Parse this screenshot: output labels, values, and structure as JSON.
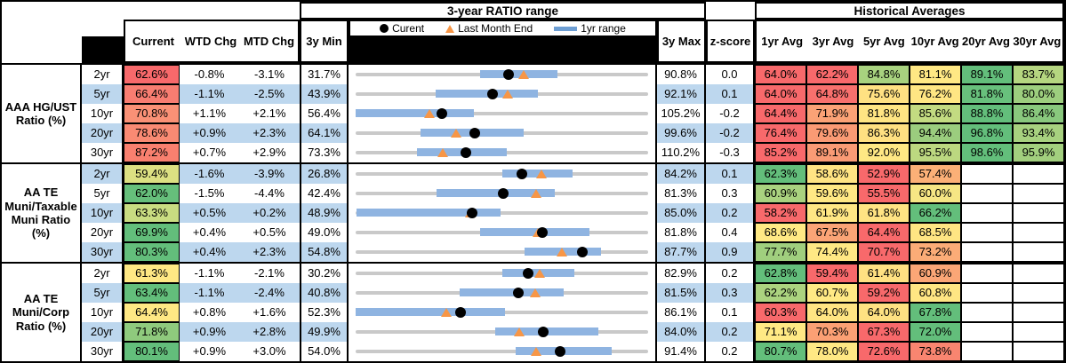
{
  "header": {
    "range_title": "3-year RATIO range",
    "hist_title": "Historical Averages",
    "cols": {
      "current": "Current",
      "wtd": "WTD Chg",
      "mtd": "MTD Chg",
      "min": "3y Min",
      "max": "3y Max",
      "z": "z-score"
    },
    "avg_cols": [
      "1yr Avg",
      "3yr Avg",
      "5yr Avg",
      "10yr Avg",
      "20yr Avg",
      "30yr Avg"
    ]
  },
  "legend": {
    "current": "Curent",
    "lme": "Last Month End",
    "range": "1yr range"
  },
  "theme": {
    "stripe": "#BDD7EE",
    "bar_blue": "#8FB4E1",
    "legend_bar_blue": "#6D9ED3",
    "marker_orange": "#F79646",
    "marker_black": "#000000",
    "line_gray": "#C9C9C9"
  },
  "chart_data": {
    "type": "table",
    "note_units": "percent",
    "groups": [
      {
        "label": "AAA HG/UST Ratio (%)",
        "rows": [
          {
            "tenor": "2yr",
            "current": {
              "v": "62.6%",
              "c": "#F8696B"
            },
            "wtd": "-0.8%",
            "mtd": "-3.1%",
            "min": "31.7%",
            "max": "90.8%",
            "z": "0.0",
            "bar": [
              56.8,
              72.5
            ],
            "avgs": [
              {
                "v": "64.0%",
                "c": "#F8696B"
              },
              {
                "v": "62.2%",
                "c": "#F8696B"
              },
              {
                "v": "84.8%",
                "c": "#A8D27F"
              },
              {
                "v": "81.1%",
                "c": "#FFE884"
              },
              {
                "v": "89.1%",
                "c": "#63BE7B"
              },
              {
                "v": "83.7%",
                "c": "#B5D680"
              }
            ]
          },
          {
            "tenor": "5yr",
            "current": {
              "v": "66.4%",
              "c": "#F87D71"
            },
            "wtd": "-1.1%",
            "mtd": "-2.5%",
            "min": "43.9%",
            "max": "92.1%",
            "z": "0.1",
            "bar": [
              57.1,
              73.9
            ],
            "avgs": [
              {
                "v": "64.0%",
                "c": "#F8696B"
              },
              {
                "v": "64.8%",
                "c": "#F8706D"
              },
              {
                "v": "75.6%",
                "c": "#FFE182"
              },
              {
                "v": "76.2%",
                "c": "#FFE683"
              },
              {
                "v": "81.8%",
                "c": "#68C07C"
              },
              {
                "v": "80.0%",
                "c": "#9DCE7E"
              }
            ]
          },
          {
            "tenor": "10yr",
            "current": {
              "v": "70.8%",
              "c": "#FA9176"
            },
            "wtd": "+1.1%",
            "mtd": "+2.1%",
            "min": "56.4%",
            "max": "105.2%",
            "z": "-0.2",
            "bar": [
              56.4,
              76.1
            ],
            "avgs": [
              {
                "v": "64.4%",
                "c": "#F8696B"
              },
              {
                "v": "71.9%",
                "c": "#FBA276"
              },
              {
                "v": "81.8%",
                "c": "#FFE583"
              },
              {
                "v": "85.6%",
                "c": "#C3DB81"
              },
              {
                "v": "88.8%",
                "c": "#63BE7B"
              },
              {
                "v": "86.4%",
                "c": "#89C87D"
              }
            ]
          },
          {
            "tenor": "20yr",
            "current": {
              "v": "78.6%",
              "c": "#F98A73"
            },
            "wtd": "+0.9%",
            "mtd": "+2.3%",
            "min": "64.1%",
            "max": "99.6%",
            "z": "-0.2",
            "bar": [
              72.0,
              84.5
            ],
            "avgs": [
              {
                "v": "76.4%",
                "c": "#F8696B"
              },
              {
                "v": "79.6%",
                "c": "#FA9A74"
              },
              {
                "v": "86.3%",
                "c": "#FFE081"
              },
              {
                "v": "94.4%",
                "c": "#9BCD7E"
              },
              {
                "v": "96.8%",
                "c": "#63BE7B"
              },
              {
                "v": "93.4%",
                "c": "#A7D17F"
              }
            ]
          },
          {
            "tenor": "30yr",
            "current": {
              "v": "87.2%",
              "c": "#F9806F"
            },
            "wtd": "+0.7%",
            "mtd": "+2.9%",
            "min": "73.3%",
            "max": "110.2%",
            "z": "-0.3",
            "bar": [
              81.0,
              92.4
            ],
            "avgs": [
              {
                "v": "85.2%",
                "c": "#F8696B"
              },
              {
                "v": "89.1%",
                "c": "#FA9B75"
              },
              {
                "v": "92.0%",
                "c": "#FFE884"
              },
              {
                "v": "95.5%",
                "c": "#BCD880"
              },
              {
                "v": "98.6%",
                "c": "#63BE7B"
              },
              {
                "v": "95.9%",
                "c": "#A2CF7E"
              }
            ]
          }
        ]
      },
      {
        "label": "AA TE Muni/Taxable Muni Ratio (%)",
        "rows": [
          {
            "tenor": "2yr",
            "current": {
              "v": "59.4%",
              "c": "#DCE082"
            },
            "wtd": "-1.6%",
            "mtd": "-3.9%",
            "min": "26.8%",
            "max": "84.2%",
            "z": "0.1",
            "bar": [
              55.5,
              69.3
            ],
            "avgs": [
              {
                "v": "62.3%",
                "c": "#63BE7B"
              },
              {
                "v": "58.6%",
                "c": "#FFE483"
              },
              {
                "v": "52.9%",
                "c": "#F8696B"
              },
              {
                "v": "57.4%",
                "c": "#FCB077"
              },
              null,
              null
            ]
          },
          {
            "tenor": "5yr",
            "current": {
              "v": "62.0%",
              "c": "#66BF7B"
            },
            "wtd": "-1.5%",
            "mtd": "-4.4%",
            "min": "42.4%",
            "max": "81.3%",
            "z": "0.3",
            "bar": [
              53.1,
              68.9
            ],
            "avgs": [
              {
                "v": "60.9%",
                "c": "#A9D27F"
              },
              {
                "v": "59.6%",
                "c": "#FFE884"
              },
              {
                "v": "55.5%",
                "c": "#F8696B"
              },
              {
                "v": "60.0%",
                "c": "#F6E684"
              },
              null,
              null
            ]
          },
          {
            "tenor": "10yr",
            "current": {
              "v": "63.3%",
              "c": "#C9DC81"
            },
            "wtd": "+0.5%",
            "mtd": "+0.2%",
            "min": "48.9%",
            "max": "85.0%",
            "z": "0.2",
            "bar": [
              49.0,
              66.8
            ],
            "avgs": [
              {
                "v": "58.2%",
                "c": "#F8696B"
              },
              {
                "v": "61.9%",
                "c": "#FFE784"
              },
              {
                "v": "61.8%",
                "c": "#FFE383"
              },
              {
                "v": "66.2%",
                "c": "#63BE7B"
              },
              null,
              null
            ]
          },
          {
            "tenor": "20yr",
            "current": {
              "v": "69.9%",
              "c": "#63BE7B"
            },
            "wtd": "+0.4%",
            "mtd": "+0.5%",
            "min": "49.0%",
            "max": "81.8%",
            "z": "0.4",
            "bar": [
              63.0,
              75.2
            ],
            "avgs": [
              {
                "v": "68.6%",
                "c": "#FFE984"
              },
              {
                "v": "67.5%",
                "c": "#FBA476"
              },
              {
                "v": "64.4%",
                "c": "#F8696B"
              },
              {
                "v": "68.5%",
                "c": "#FFE583"
              },
              null,
              null
            ]
          },
          {
            "tenor": "30yr",
            "current": {
              "v": "80.3%",
              "c": "#63BE7B"
            },
            "wtd": "+0.4%",
            "mtd": "+2.3%",
            "min": "54.8%",
            "max": "87.7%",
            "z": "0.9",
            "bar": [
              73.8,
              82.4
            ],
            "avgs": [
              {
                "v": "77.7%",
                "c": "#A0CF7E"
              },
              {
                "v": "74.4%",
                "c": "#FFE884"
              },
              {
                "v": "70.7%",
                "c": "#F8696B"
              },
              {
                "v": "73.2%",
                "c": "#FBAC77"
              },
              null,
              null
            ]
          }
        ]
      },
      {
        "label": "AA TE Muni/Corp Ratio (%)",
        "rows": [
          {
            "tenor": "2yr",
            "current": {
              "v": "61.3%",
              "c": "#FFE884"
            },
            "wtd": "-1.1%",
            "mtd": "-2.1%",
            "min": "30.2%",
            "max": "82.9%",
            "z": "0.2",
            "bar": [
              56.6,
              69.6
            ],
            "avgs": [
              {
                "v": "62.8%",
                "c": "#63BE7B"
              },
              {
                "v": "59.4%",
                "c": "#F8696B"
              },
              {
                "v": "61.4%",
                "c": "#FFE182"
              },
              {
                "v": "60.9%",
                "c": "#FBA676"
              },
              null,
              null
            ]
          },
          {
            "tenor": "5yr",
            "current": {
              "v": "63.4%",
              "c": "#63BE7B"
            },
            "wtd": "-1.1%",
            "mtd": "-2.4%",
            "min": "40.8%",
            "max": "81.5%",
            "z": "0.3",
            "bar": [
              55.3,
              69.7
            ],
            "avgs": [
              {
                "v": "62.2%",
                "c": "#ABD37F"
              },
              {
                "v": "60.7%",
                "c": "#FFE984"
              },
              {
                "v": "59.2%",
                "c": "#F8696B"
              },
              {
                "v": "60.8%",
                "c": "#FFE683"
              },
              null,
              null
            ]
          },
          {
            "tenor": "10yr",
            "current": {
              "v": "64.4%",
              "c": "#FFE884"
            },
            "wtd": "+0.8%",
            "mtd": "+1.6%",
            "min": "52.3%",
            "max": "86.1%",
            "z": "0.1",
            "bar": [
              52.3,
              69.6
            ],
            "avgs": [
              {
                "v": "60.3%",
                "c": "#F8696B"
              },
              {
                "v": "64.0%",
                "c": "#FFE583"
              },
              {
                "v": "64.0%",
                "c": "#FEE182"
              },
              {
                "v": "67.8%",
                "c": "#63BE7B"
              },
              null,
              null
            ]
          },
          {
            "tenor": "20yr",
            "current": {
              "v": "71.8%",
              "c": "#8FCA7D"
            },
            "wtd": "+0.9%",
            "mtd": "+2.8%",
            "min": "49.9%",
            "max": "84.0%",
            "z": "0.2",
            "bar": [
              66.2,
              78.2
            ],
            "avgs": [
              {
                "v": "71.1%",
                "c": "#FFE984"
              },
              {
                "v": "70.3%",
                "c": "#FBA074"
              },
              {
                "v": "67.3%",
                "c": "#F8696B"
              },
              {
                "v": "72.0%",
                "c": "#63BE7B"
              },
              null,
              null
            ]
          },
          {
            "tenor": "30yr",
            "current": {
              "v": "80.1%",
              "c": "#63BE7B"
            },
            "wtd": "+0.9%",
            "mtd": "+3.0%",
            "min": "54.0%",
            "max": "91.4%",
            "z": "0.2",
            "bar": [
              74.4,
              86.7
            ],
            "avgs": [
              {
                "v": "80.7%",
                "c": "#63BE7B"
              },
              {
                "v": "78.0%",
                "c": "#FFE884"
              },
              {
                "v": "72.6%",
                "c": "#F8696B"
              },
              {
                "v": "73.8%",
                "c": "#F98570"
              },
              null,
              null
            ]
          }
        ]
      }
    ]
  }
}
